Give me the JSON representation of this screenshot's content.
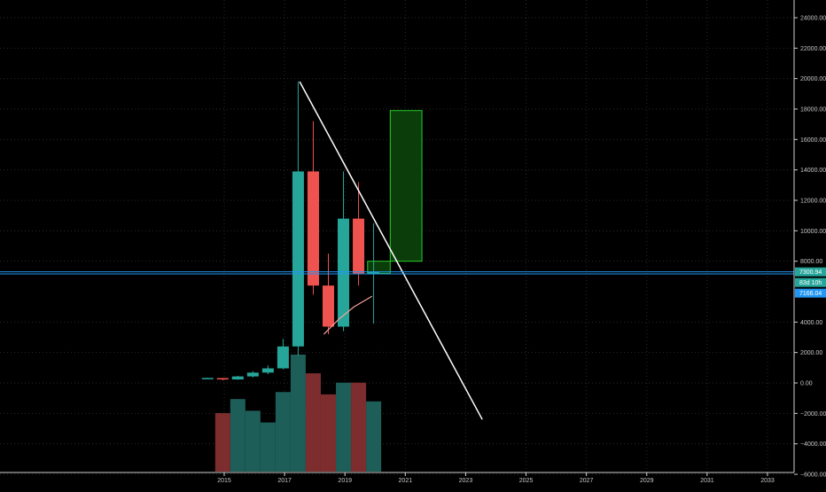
{
  "chart_data": {
    "type": "candlestick",
    "timeframe": "semi-annual",
    "y_axis": {
      "range": [
        -7000,
        25000
      ],
      "ticks": [
        -6000,
        -4000,
        -2000,
        0,
        2000,
        4000,
        8000,
        10000,
        12000,
        14000,
        16000,
        18000,
        20000,
        22000,
        24000
      ],
      "tick_labels": [
        "−6000.00",
        "−4000.00",
        "−2000.00",
        "0.00",
        "2000.00",
        "4000.00",
        "8000.00",
        "10000.00",
        "12000.00",
        "14000.00",
        "16000.00",
        "18000.00",
        "20000.00",
        "22000.00",
        "24000.00"
      ]
    },
    "x_axis": {
      "range": [
        2013.9,
        2034.1
      ],
      "ticks": [
        2015,
        2017,
        2019,
        2021,
        2023,
        2025,
        2027,
        2029,
        2031,
        2033
      ],
      "tick_labels": [
        "2015",
        "2017",
        "2019",
        "2021",
        "2023",
        "2025",
        "2027",
        "2029",
        "2031",
        "2033"
      ]
    },
    "candles": [
      {
        "t": 2014.45,
        "open": 320,
        "high": 340,
        "low": 300,
        "close": 330
      },
      {
        "t": 2014.95,
        "open": 320,
        "high": 330,
        "low": 170,
        "close": 230
      },
      {
        "t": 2015.45,
        "open": 230,
        "high": 470,
        "low": 210,
        "close": 430
      },
      {
        "t": 2015.95,
        "open": 430,
        "high": 780,
        "low": 360,
        "close": 680
      },
      {
        "t": 2016.45,
        "open": 680,
        "high": 1150,
        "low": 580,
        "close": 960
      },
      {
        "t": 2016.95,
        "open": 960,
        "high": 2900,
        "low": 900,
        "close": 2400
      },
      {
        "t": 2017.45,
        "open": 2400,
        "high": 19800,
        "low": 1800,
        "close": 13900
      },
      {
        "t": 2017.95,
        "open": 13900,
        "high": 17200,
        "low": 5800,
        "close": 6400
      },
      {
        "t": 2018.45,
        "open": 6400,
        "high": 8500,
        "low": 3200,
        "close": 3700
      },
      {
        "t": 2018.95,
        "open": 3700,
        "high": 13900,
        "low": 3400,
        "close": 10800
      },
      {
        "t": 2019.45,
        "open": 10800,
        "high": 13200,
        "low": 6400,
        "close": 7200
      },
      {
        "t": 2019.95,
        "open": 7200,
        "high": 10500,
        "low": 3900,
        "close": 7300
      }
    ],
    "volume": [
      {
        "t": 2014.95,
        "value": 50,
        "direction": "down"
      },
      {
        "t": 2015.45,
        "value": 62,
        "direction": "up"
      },
      {
        "t": 2015.95,
        "value": 52,
        "direction": "up"
      },
      {
        "t": 2016.45,
        "value": 42,
        "direction": "up"
      },
      {
        "t": 2016.95,
        "value": 68,
        "direction": "up"
      },
      {
        "t": 2017.45,
        "value": 100,
        "direction": "up"
      },
      {
        "t": 2017.95,
        "value": 84,
        "direction": "down"
      },
      {
        "t": 2018.45,
        "value": 66,
        "direction": "down"
      },
      {
        "t": 2018.95,
        "value": 76,
        "direction": "up"
      },
      {
        "t": 2019.45,
        "value": 76,
        "direction": "down"
      },
      {
        "t": 2019.95,
        "value": 60,
        "direction": "up"
      }
    ],
    "moving_average": [
      {
        "t": 2018.3,
        "value": 3200
      },
      {
        "t": 2018.8,
        "value": 4200
      },
      {
        "t": 2019.3,
        "value": 5000
      },
      {
        "t": 2019.9,
        "value": 5700
      }
    ],
    "trendline": {
      "start": {
        "t": 2017.5,
        "value": 19800
      },
      "end": {
        "t": 2023.55,
        "value": -2400
      }
    },
    "position_tool": {
      "t_start": 2019.75,
      "t_end": 2021.55,
      "entry": 7200,
      "target": 17900,
      "stop": 8000
    },
    "price_lines": [
      {
        "value": 7300.94,
        "color": "#2196f3"
      },
      {
        "value": 7166.04,
        "color": "#2196f3"
      }
    ],
    "badges": [
      {
        "label": "7300.94",
        "value": 7300.94,
        "bg": "#26a69a",
        "offset": 0
      },
      {
        "label": "83d 10h",
        "value": 7300.94,
        "bg": "#26a69a",
        "offset": 12
      },
      {
        "label": "7166.04",
        "value": 7166.04,
        "bg": "#2196f3",
        "offset": 24
      }
    ],
    "colors": {
      "up": "#26a69a",
      "down": "#ef5350",
      "up_volume": "#1e5e58",
      "down_volume": "#7d2d2d",
      "grid": "#2a2a2a",
      "trendline": "#ffffff",
      "target_zone": "#0b3d0b",
      "target_border": "#27c927",
      "ma": "#f4a29a"
    }
  }
}
